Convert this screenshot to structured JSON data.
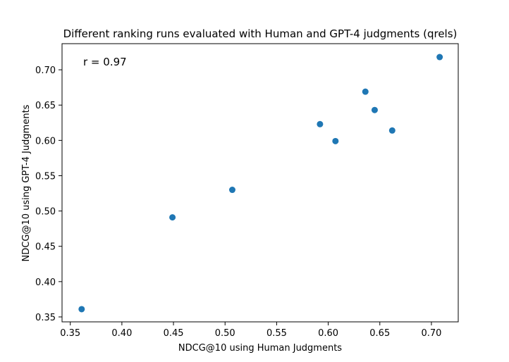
{
  "chart_data": {
    "type": "scatter",
    "title": "Different ranking runs evaluated with Human and GPT-4 judgments (qrels)",
    "xlabel": "NDCG@10 using Human Judgments",
    "ylabel": "NDCG@10 using GPT-4 Judgments",
    "annotation": "r = 0.97",
    "xlim": [
      0.342,
      0.726
    ],
    "ylim": [
      0.343,
      0.737
    ],
    "xticks": [
      0.35,
      0.4,
      0.45,
      0.5,
      0.55,
      0.6,
      0.65,
      0.7
    ],
    "xtick_labels": [
      "0.35",
      "0.40",
      "0.45",
      "0.50",
      "0.55",
      "0.60",
      "0.65",
      "0.70"
    ],
    "yticks": [
      0.35,
      0.4,
      0.45,
      0.5,
      0.55,
      0.6,
      0.65,
      0.7
    ],
    "ytick_labels": [
      "0.35",
      "0.40",
      "0.45",
      "0.50",
      "0.55",
      "0.60",
      "0.65",
      "0.70"
    ],
    "grid": false,
    "marker_color": "#1f77b4",
    "points": [
      {
        "x": 0.361,
        "y": 0.361
      },
      {
        "x": 0.449,
        "y": 0.491
      },
      {
        "x": 0.507,
        "y": 0.53
      },
      {
        "x": 0.592,
        "y": 0.623
      },
      {
        "x": 0.607,
        "y": 0.599
      },
      {
        "x": 0.636,
        "y": 0.669
      },
      {
        "x": 0.645,
        "y": 0.643
      },
      {
        "x": 0.662,
        "y": 0.614
      },
      {
        "x": 0.708,
        "y": 0.718
      }
    ]
  }
}
